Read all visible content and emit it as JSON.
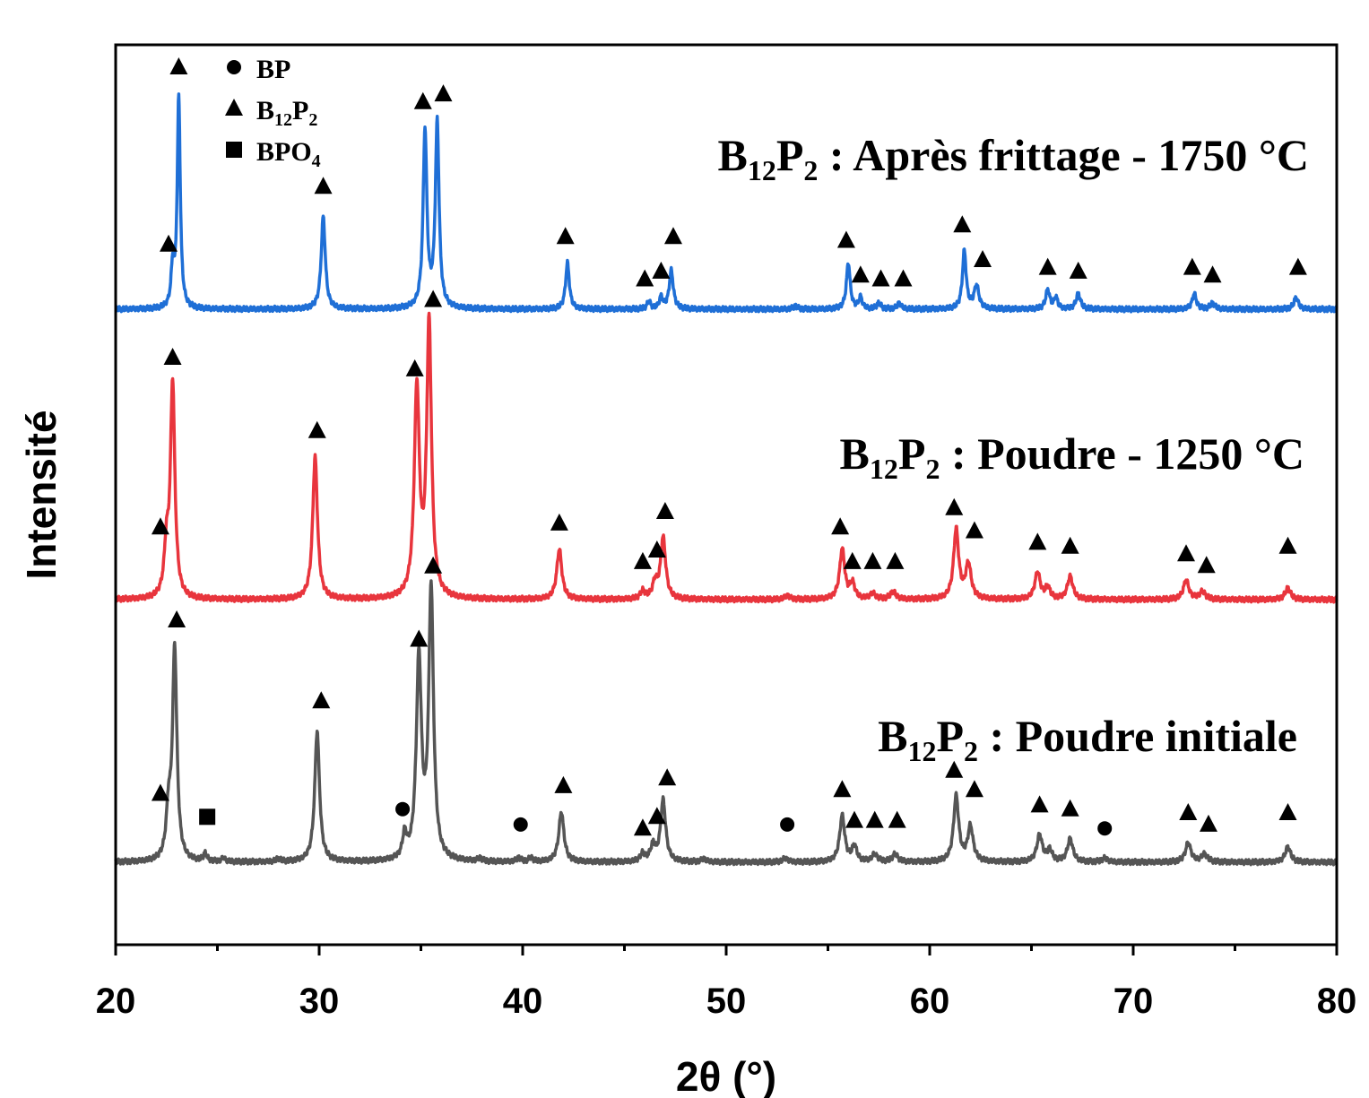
{
  "chart_data": {
    "type": "line",
    "xlabel": "2θ (°)",
    "ylabel": "Intensité",
    "xlim": [
      20,
      80
    ],
    "xticks": [
      20,
      30,
      40,
      50,
      60,
      70,
      80
    ],
    "yticks_shown": false,
    "grid": false,
    "legend": {
      "placement": "top-left",
      "entries": [
        {
          "marker": "circle",
          "label": "BP"
        },
        {
          "marker": "triangle",
          "label": "B",
          "sub1": "12",
          "mid": "P",
          "sub2": "2"
        },
        {
          "marker": "square",
          "label": "BPO",
          "sub1": "4"
        }
      ]
    },
    "series": [
      {
        "name": "B12P2 : Après frittage - 1750 °C",
        "label_parts": {
          "b": "B",
          "s1": "12",
          "p": "P",
          "s2": "2",
          "rest": " : Après frittage - 1750 °C"
        },
        "color": "#1f6fd6",
        "baseline": 0.0,
        "peaks": [
          [
            22.8,
            0.1,
            0.09
          ],
          [
            23.1,
            0.55,
            0.09
          ],
          [
            30.2,
            0.24,
            0.12
          ],
          [
            35.2,
            0.46,
            0.11
          ],
          [
            35.8,
            0.48,
            0.11
          ],
          [
            42.2,
            0.12,
            0.11
          ],
          [
            46.2,
            0.02,
            0.1
          ],
          [
            46.8,
            0.03,
            0.1
          ],
          [
            47.3,
            0.1,
            0.12
          ],
          [
            56.0,
            0.12,
            0.11
          ],
          [
            56.6,
            0.03,
            0.1
          ],
          [
            57.5,
            0.015,
            0.12
          ],
          [
            58.5,
            0.015,
            0.12
          ],
          [
            61.7,
            0.15,
            0.11
          ],
          [
            62.3,
            0.06,
            0.14
          ],
          [
            65.8,
            0.05,
            0.12
          ],
          [
            66.2,
            0.03,
            0.1
          ],
          [
            67.3,
            0.04,
            0.13
          ],
          [
            73.0,
            0.04,
            0.12
          ],
          [
            73.9,
            0.015,
            0.14
          ],
          [
            78.0,
            0.03,
            0.13
          ],
          [
            53.4,
            0.008,
            0.12
          ]
        ],
        "markers": [
          {
            "x": 22.6,
            "h": 0.14,
            "m": "triangle"
          },
          {
            "x": 23.1,
            "h": 0.6,
            "m": "triangle"
          },
          {
            "x": 30.2,
            "h": 0.29,
            "m": "triangle"
          },
          {
            "x": 35.1,
            "h": 0.51,
            "m": "triangle"
          },
          {
            "x": 36.1,
            "h": 0.53,
            "m": "triangle"
          },
          {
            "x": 42.1,
            "h": 0.16,
            "m": "triangle"
          },
          {
            "x": 46.0,
            "h": 0.05,
            "m": "triangle"
          },
          {
            "x": 46.8,
            "h": 0.07,
            "m": "triangle"
          },
          {
            "x": 47.4,
            "h": 0.16,
            "m": "triangle"
          },
          {
            "x": 55.9,
            "h": 0.15,
            "m": "triangle"
          },
          {
            "x": 56.6,
            "h": 0.06,
            "m": "triangle"
          },
          {
            "x": 57.6,
            "h": 0.05,
            "m": "triangle"
          },
          {
            "x": 58.7,
            "h": 0.05,
            "m": "triangle"
          },
          {
            "x": 61.6,
            "h": 0.19,
            "m": "triangle"
          },
          {
            "x": 62.6,
            "h": 0.1,
            "m": "triangle"
          },
          {
            "x": 65.8,
            "h": 0.08,
            "m": "triangle"
          },
          {
            "x": 67.3,
            "h": 0.07,
            "m": "triangle"
          },
          {
            "x": 72.9,
            "h": 0.08,
            "m": "triangle"
          },
          {
            "x": 73.9,
            "h": 0.06,
            "m": "triangle"
          },
          {
            "x": 78.1,
            "h": 0.08,
            "m": "triangle"
          }
        ]
      },
      {
        "name": "B12P2 : Poudre - 1250 °C",
        "label_parts": {
          "b": "B",
          "s1": "12",
          "p": "P",
          "s2": "2",
          "rest": " : Poudre - 1250 °C"
        },
        "color": "#e8353d",
        "baseline": 0.0,
        "peaks": [
          [
            22.5,
            0.12,
            0.13
          ],
          [
            22.8,
            0.56,
            0.13
          ],
          [
            29.8,
            0.37,
            0.14
          ],
          [
            34.8,
            0.54,
            0.15
          ],
          [
            35.4,
            0.71,
            0.14
          ],
          [
            41.8,
            0.13,
            0.15
          ],
          [
            45.9,
            0.02,
            0.14
          ],
          [
            46.5,
            0.04,
            0.14
          ],
          [
            46.9,
            0.16,
            0.15
          ],
          [
            53.0,
            0.01,
            0.15
          ],
          [
            55.7,
            0.13,
            0.15
          ],
          [
            56.2,
            0.04,
            0.14
          ],
          [
            57.2,
            0.015,
            0.16
          ],
          [
            58.2,
            0.02,
            0.16
          ],
          [
            61.3,
            0.18,
            0.15
          ],
          [
            61.9,
            0.09,
            0.16
          ],
          [
            65.3,
            0.07,
            0.16
          ],
          [
            65.8,
            0.03,
            0.14
          ],
          [
            66.9,
            0.06,
            0.16
          ],
          [
            72.6,
            0.05,
            0.16
          ],
          [
            73.4,
            0.02,
            0.18
          ],
          [
            77.6,
            0.03,
            0.16
          ]
        ],
        "markers": [
          {
            "x": 22.2,
            "h": 0.16,
            "m": "triangle"
          },
          {
            "x": 22.8,
            "h": 0.6,
            "m": "triangle"
          },
          {
            "x": 29.9,
            "h": 0.41,
            "m": "triangle"
          },
          {
            "x": 34.7,
            "h": 0.57,
            "m": "triangle"
          },
          {
            "x": 35.6,
            "h": 0.75,
            "m": "triangle"
          },
          {
            "x": 41.8,
            "h": 0.17,
            "m": "triangle"
          },
          {
            "x": 45.9,
            "h": 0.07,
            "m": "triangle"
          },
          {
            "x": 46.6,
            "h": 0.1,
            "m": "triangle"
          },
          {
            "x": 47.0,
            "h": 0.2,
            "m": "triangle"
          },
          {
            "x": 55.6,
            "h": 0.16,
            "m": "triangle"
          },
          {
            "x": 56.2,
            "h": 0.07,
            "m": "triangle"
          },
          {
            "x": 57.2,
            "h": 0.07,
            "m": "triangle"
          },
          {
            "x": 58.3,
            "h": 0.07,
            "m": "triangle"
          },
          {
            "x": 61.2,
            "h": 0.21,
            "m": "triangle"
          },
          {
            "x": 62.2,
            "h": 0.15,
            "m": "triangle"
          },
          {
            "x": 65.3,
            "h": 0.12,
            "m": "triangle"
          },
          {
            "x": 66.9,
            "h": 0.11,
            "m": "triangle"
          },
          {
            "x": 72.6,
            "h": 0.09,
            "m": "triangle"
          },
          {
            "x": 73.6,
            "h": 0.06,
            "m": "triangle"
          },
          {
            "x": 77.6,
            "h": 0.11,
            "m": "triangle"
          }
        ]
      },
      {
        "name": "B12P2 : Poudre initiale",
        "label_parts": {
          "b": "B",
          "s1": "12",
          "p": "P",
          "s2": "2",
          "rest": " : Poudre initiale"
        },
        "color": "#555555",
        "baseline": 0.0,
        "peaks": [
          [
            22.6,
            0.12,
            0.13
          ],
          [
            22.9,
            0.55,
            0.13
          ],
          [
            24.4,
            0.02,
            0.1
          ],
          [
            25.3,
            0.01,
            0.1
          ],
          [
            28.0,
            0.008,
            0.12
          ],
          [
            29.9,
            0.34,
            0.14
          ],
          [
            34.2,
            0.06,
            0.12
          ],
          [
            34.9,
            0.52,
            0.15
          ],
          [
            35.5,
            0.7,
            0.14
          ],
          [
            37.9,
            0.008,
            0.12
          ],
          [
            39.8,
            0.01,
            0.12
          ],
          [
            40.4,
            0.01,
            0.12
          ],
          [
            41.9,
            0.13,
            0.15
          ],
          [
            45.9,
            0.02,
            0.14
          ],
          [
            46.4,
            0.04,
            0.14
          ],
          [
            46.9,
            0.16,
            0.15
          ],
          [
            48.9,
            0.008,
            0.14
          ],
          [
            52.9,
            0.01,
            0.15
          ],
          [
            55.7,
            0.12,
            0.15
          ],
          [
            56.3,
            0.04,
            0.14
          ],
          [
            57.3,
            0.02,
            0.16
          ],
          [
            58.3,
            0.02,
            0.16
          ],
          [
            61.3,
            0.17,
            0.15
          ],
          [
            62.0,
            0.09,
            0.16
          ],
          [
            65.4,
            0.07,
            0.16
          ],
          [
            65.9,
            0.03,
            0.14
          ],
          [
            66.9,
            0.06,
            0.16
          ],
          [
            68.6,
            0.01,
            0.16
          ],
          [
            72.7,
            0.05,
            0.16
          ],
          [
            73.5,
            0.02,
            0.18
          ],
          [
            77.6,
            0.04,
            0.16
          ]
        ],
        "markers": [
          {
            "x": 22.2,
            "h": 0.15,
            "m": "triangle"
          },
          {
            "x": 23.0,
            "h": 0.6,
            "m": "triangle"
          },
          {
            "x": 24.5,
            "h": 0.09,
            "m": "square"
          },
          {
            "x": 30.1,
            "h": 0.39,
            "m": "triangle"
          },
          {
            "x": 34.1,
            "h": 0.11,
            "m": "circle"
          },
          {
            "x": 34.9,
            "h": 0.55,
            "m": "triangle"
          },
          {
            "x": 35.6,
            "h": 0.74,
            "m": "triangle"
          },
          {
            "x": 39.9,
            "h": 0.07,
            "m": "circle"
          },
          {
            "x": 42.0,
            "h": 0.17,
            "m": "triangle"
          },
          {
            "x": 45.9,
            "h": 0.06,
            "m": "triangle"
          },
          {
            "x": 46.6,
            "h": 0.09,
            "m": "triangle"
          },
          {
            "x": 47.1,
            "h": 0.19,
            "m": "triangle"
          },
          {
            "x": 53.0,
            "h": 0.07,
            "m": "circle"
          },
          {
            "x": 55.7,
            "h": 0.16,
            "m": "triangle"
          },
          {
            "x": 56.3,
            "h": 0.08,
            "m": "triangle"
          },
          {
            "x": 57.3,
            "h": 0.08,
            "m": "triangle"
          },
          {
            "x": 58.4,
            "h": 0.08,
            "m": "triangle"
          },
          {
            "x": 61.2,
            "h": 0.21,
            "m": "triangle"
          },
          {
            "x": 62.2,
            "h": 0.16,
            "m": "triangle"
          },
          {
            "x": 65.4,
            "h": 0.12,
            "m": "triangle"
          },
          {
            "x": 66.9,
            "h": 0.11,
            "m": "triangle"
          },
          {
            "x": 68.6,
            "h": 0.06,
            "m": "circle"
          },
          {
            "x": 72.7,
            "h": 0.1,
            "m": "triangle"
          },
          {
            "x": 73.7,
            "h": 0.07,
            "m": "triangle"
          },
          {
            "x": 77.6,
            "h": 0.1,
            "m": "triangle"
          }
        ]
      }
    ]
  }
}
